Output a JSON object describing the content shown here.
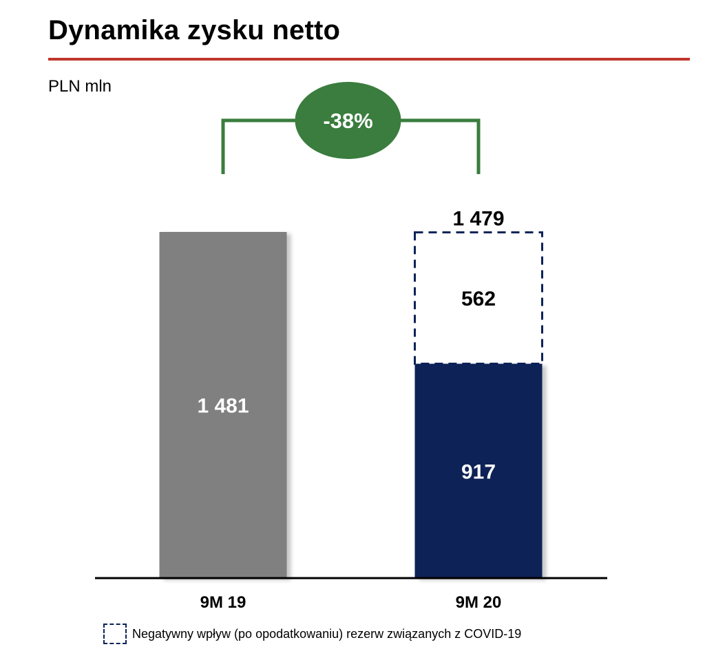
{
  "title": "Dynamika zysku netto",
  "unit": "PLN mln",
  "colors": {
    "title_rule": "#c0362c",
    "bar_9m19": "#808080",
    "bar_9m20": "#0b2157",
    "dashed_outline": "#0b2157",
    "change_badge": "#3a7d3e",
    "axis": "#000000"
  },
  "chart_data": {
    "type": "bar",
    "stacked": true,
    "categories": [
      "9M 19",
      "9M 20"
    ],
    "series": [
      {
        "values": [
          1481,
          917
        ],
        "labels": [
          "1 481",
          "917"
        ]
      },
      {
        "name": "Negatywny wpływ (po opodatkowaniu) rezerw związanych z COVID-19",
        "values": [
          null,
          562
        ],
        "labels": [
          "",
          "562"
        ],
        "style": "dashed-outline"
      }
    ],
    "totals": [
      null,
      1479
    ],
    "total_labels": [
      "",
      "1 479"
    ],
    "change": {
      "from": "9M 19",
      "to": "9M 20",
      "label": "-38%"
    },
    "ylim": [
      0,
      1481
    ],
    "xlabel": "",
    "ylabel": "",
    "grid": false
  },
  "legend": {
    "label": "Negatywny wpływ (po opodatkowaniu) rezerw związanych z COVID-19",
    "swatch": "dashed-outline"
  }
}
